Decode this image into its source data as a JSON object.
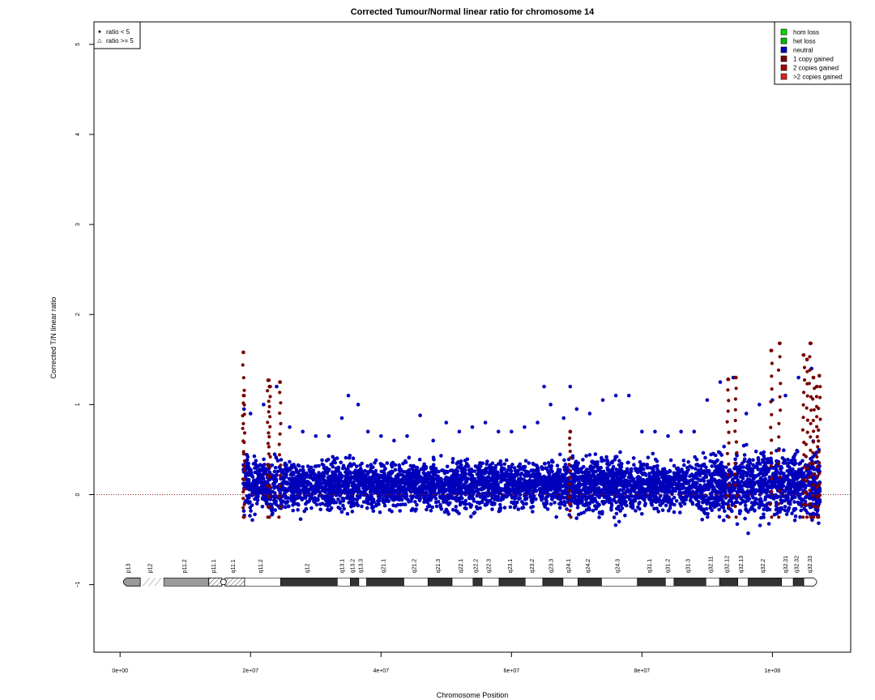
{
  "chart_data": {
    "type": "scatter",
    "title": "Corrected Tumour/Normal linear ratio for chromosome  14",
    "xlabel": "Chromosome Position",
    "ylabel": "Corrected T/N linear ratio",
    "xlim": [
      -4000000,
      112000000
    ],
    "ylim": [
      -1.75,
      5.25
    ],
    "xticks": [
      0,
      20000000,
      40000000,
      60000000,
      80000000,
      100000000
    ],
    "xtick_labels": [
      "0e+00",
      "2e+07",
      "4e+07",
      "6e+07",
      "8e+07",
      "1e+08"
    ],
    "yticks": [
      -1,
      0,
      1,
      2,
      3,
      4,
      5
    ],
    "ytick_labels": [
      "−1",
      "0",
      "1",
      "2",
      "3",
      "4",
      "5"
    ],
    "reference_line": {
      "y": 0,
      "style": "dotted",
      "color": "#9b1c1c"
    },
    "data_range_x": [
      18900000,
      107300000
    ],
    "data_range_note": "dense point cloud, typical ratio between -0.5 and 0.7",
    "series": [
      {
        "name": "neutral",
        "color": "#0000bb",
        "x": [
          19000000,
          20000000,
          22000000,
          24000000,
          26000000,
          28000000,
          30000000,
          32000000,
          34000000,
          35000000,
          36500000,
          38000000,
          40000000,
          42000000,
          44000000,
          46000000,
          48000000,
          50000000,
          52000000,
          54000000,
          56000000,
          58000000,
          60000000,
          62000000,
          64000000,
          65000000,
          66000000,
          68000000,
          69000000,
          70000000,
          72000000,
          74000000,
          76000000,
          78000000,
          80000000,
          82000000,
          84000000,
          86000000,
          88000000,
          90000000,
          92000000,
          94000000,
          96000000,
          98000000,
          100000000,
          102000000,
          104000000,
          106000000
        ],
        "values": [
          0.95,
          0.9,
          1.0,
          1.2,
          0.75,
          0.7,
          0.65,
          0.65,
          0.85,
          1.1,
          1.0,
          0.7,
          0.65,
          0.6,
          0.65,
          0.88,
          0.6,
          0.8,
          0.7,
          0.75,
          0.8,
          0.7,
          0.7,
          0.75,
          0.8,
          1.2,
          1.0,
          0.85,
          1.2,
          0.95,
          0.9,
          1.05,
          1.1,
          1.1,
          0.7,
          0.7,
          0.65,
          0.7,
          0.7,
          1.05,
          1.25,
          1.3,
          0.9,
          1.0,
          1.05,
          1.1,
          1.3,
          1.4
        ]
      },
      {
        "name": "1 copy gained",
        "color": "#7a0000",
        "x": [
          18900000,
          19000000,
          22700000,
          22900000,
          24500000,
          69000000,
          93200000,
          94400000,
          99800000,
          101100000,
          104800000,
          105300000,
          105800000,
          106300000,
          106800000,
          107200000
        ],
        "values": [
          1.58,
          1.1,
          1.27,
          1.2,
          1.25,
          0.7,
          1.28,
          1.3,
          1.6,
          1.68,
          1.55,
          1.5,
          1.68,
          1.3,
          1.2,
          1.32
        ]
      }
    ],
    "legend_top_left": [
      {
        "symbol": "●",
        "label": "ratio < 5"
      },
      {
        "symbol": "△",
        "label": "ratio >= 5"
      }
    ],
    "legend_top_right": [
      {
        "label": "hom loss",
        "color": "#00dd00"
      },
      {
        "label": "het loss",
        "color": "#00bb00"
      },
      {
        "label": "neutral",
        "color": "#0000bb"
      },
      {
        "label": "1 copy gained",
        "color": "#7a0000"
      },
      {
        "label": "2 copies gained",
        "color": "#aa0000"
      },
      {
        "label": ">2 copies gained",
        "color": "#dd2222"
      }
    ],
    "ideogram": {
      "y": -0.97,
      "bands": [
        {
          "name": "p13",
          "start": 0,
          "end": 3100000,
          "stain": "gvar"
        },
        {
          "name": "p12",
          "start": 3100000,
          "end": 6700000,
          "stain": "stalk"
        },
        {
          "name": "p11.2",
          "start": 6700000,
          "end": 13600000,
          "stain": "gvar"
        },
        {
          "name": "p11.1",
          "start": 13600000,
          "end": 15600000,
          "stain": "acen"
        },
        {
          "name": "q11.1",
          "start": 16100000,
          "end": 19100000,
          "stain": "acen"
        },
        {
          "name": "q11.2",
          "start": 19100000,
          "end": 24600000,
          "stain": "gneg"
        },
        {
          "name": "q12",
          "start": 24600000,
          "end": 33300000,
          "stain": "gpos"
        },
        {
          "name": "q13.1",
          "start": 33300000,
          "end": 35300000,
          "stain": "gneg"
        },
        {
          "name": "q13.2",
          "start": 35300000,
          "end": 36600000,
          "stain": "gpos"
        },
        {
          "name": "q13.3",
          "start": 36600000,
          "end": 37800000,
          "stain": "gneg"
        },
        {
          "name": "q21.1",
          "start": 37800000,
          "end": 43500000,
          "stain": "gpos"
        },
        {
          "name": "q21.2",
          "start": 43500000,
          "end": 47200000,
          "stain": "gneg"
        },
        {
          "name": "q21.3",
          "start": 47200000,
          "end": 50900000,
          "stain": "gpos"
        },
        {
          "name": "q22.1",
          "start": 50900000,
          "end": 54100000,
          "stain": "gneg"
        },
        {
          "name": "q22.2",
          "start": 54100000,
          "end": 55500000,
          "stain": "gpos"
        },
        {
          "name": "q22.3",
          "start": 55500000,
          "end": 58100000,
          "stain": "gneg"
        },
        {
          "name": "q23.1",
          "start": 58100000,
          "end": 62100000,
          "stain": "gpos"
        },
        {
          "name": "q23.2",
          "start": 62100000,
          "end": 64800000,
          "stain": "gneg"
        },
        {
          "name": "q23.3",
          "start": 64800000,
          "end": 67900000,
          "stain": "gpos"
        },
        {
          "name": "q24.1",
          "start": 67900000,
          "end": 70200000,
          "stain": "gneg"
        },
        {
          "name": "q24.2",
          "start": 70200000,
          "end": 73800000,
          "stain": "gpos"
        },
        {
          "name": "q24.3",
          "start": 73800000,
          "end": 79300000,
          "stain": "gneg"
        },
        {
          "name": "q31.1",
          "start": 79300000,
          "end": 83600000,
          "stain": "gpos"
        },
        {
          "name": "q31.2",
          "start": 83600000,
          "end": 84900000,
          "stain": "gneg"
        },
        {
          "name": "q31.3",
          "start": 84900000,
          "end": 89800000,
          "stain": "gpos"
        },
        {
          "name": "q32.11",
          "start": 89800000,
          "end": 91900000,
          "stain": "gneg"
        },
        {
          "name": "q32.12",
          "start": 91900000,
          "end": 94700000,
          "stain": "gpos"
        },
        {
          "name": "q32.13",
          "start": 94700000,
          "end": 96300000,
          "stain": "gneg"
        },
        {
          "name": "q32.2",
          "start": 96300000,
          "end": 101400000,
          "stain": "gpos"
        },
        {
          "name": "q32.31",
          "start": 101400000,
          "end": 103200000,
          "stain": "gneg"
        },
        {
          "name": "q32.32",
          "start": 103200000,
          "end": 104800000,
          "stain": "gpos"
        },
        {
          "name": "q32.33",
          "start": 104800000,
          "end": 107300000,
          "stain": "gneg"
        }
      ]
    }
  }
}
